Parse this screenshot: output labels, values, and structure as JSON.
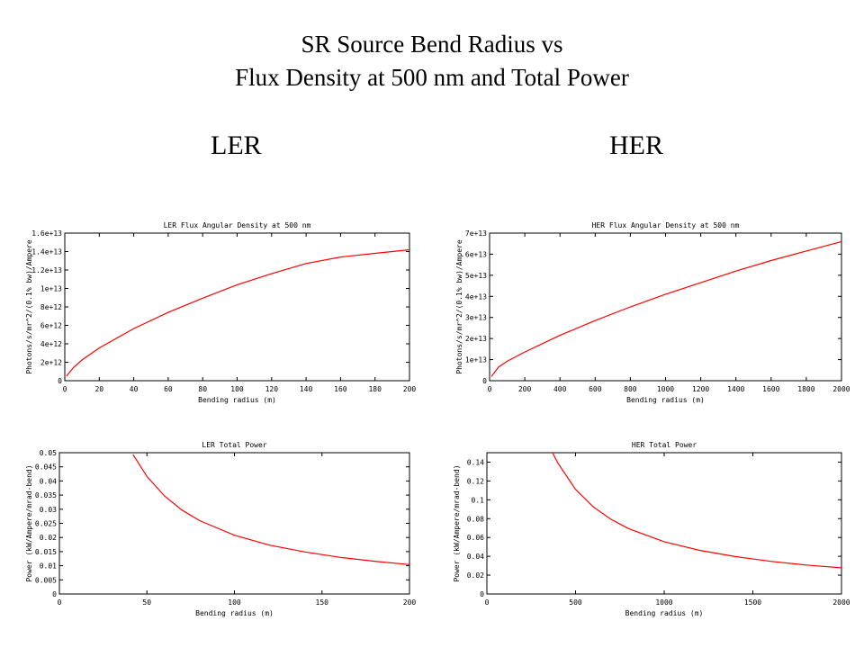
{
  "slide": {
    "title_line1": "SR Source Bend Radius vs",
    "title_line2": "Flux Density at 500 nm and Total Power",
    "label_left": "LER",
    "label_right": "HER"
  },
  "colors": {
    "curve": "#ff0000",
    "axis": "#000000"
  },
  "chart_data": [
    {
      "id": "ler-flux",
      "type": "line",
      "title": "LER Flux Angular Density at 500 nm",
      "xlabel": "Bending radius (m)",
      "ylabel": "Photons/s/mr^2/(0.1% bw)/Ampere",
      "xlim": [
        0,
        200
      ],
      "ylim": [
        0,
        16000000000000.0
      ],
      "xticks": [
        0,
        20,
        40,
        60,
        80,
        100,
        120,
        140,
        160,
        180,
        200
      ],
      "xtick_labels": [
        "0",
        "20",
        "40",
        "60",
        "80",
        "100",
        "120",
        "140",
        "160",
        "180",
        "200"
      ],
      "yticks": [
        0,
        2000000000000.0,
        4000000000000.0,
        6000000000000.0,
        8000000000000.0,
        10000000000000.0,
        12000000000000.0,
        14000000000000.0,
        16000000000000.0
      ],
      "ytick_labels": [
        "0",
        "2e+12",
        "4e+12",
        "6e+12",
        "8e+12",
        "1e+13",
        "1.2e+13",
        "1.4e+13",
        "1.6e+13"
      ],
      "series": [
        {
          "x": [
            1,
            5,
            10,
            20,
            40,
            60,
            80,
            100,
            120,
            140,
            160,
            180,
            200
          ],
          "y": [
            500000000000.0,
            1420000000000.0,
            2250000000000.0,
            3550000000000.0,
            5650000000000.0,
            7400000000000.0,
            8950000000000.0,
            10400000000000.0,
            11600000000000.0,
            12700000000000.0,
            13400000000000.0,
            13800000000000.0,
            14200000000000.0
          ]
        }
      ]
    },
    {
      "id": "her-flux",
      "type": "line",
      "title": "HER Flux Angular Density at 500 nm",
      "xlabel": "Bending radius (m)",
      "ylabel": "Photons/s/mr^2/(0.1% bw)/Ampere",
      "xlim": [
        0,
        2000
      ],
      "ylim": [
        0,
        70000000000000.0
      ],
      "xticks": [
        0,
        200,
        400,
        600,
        800,
        1000,
        1200,
        1400,
        1600,
        1800,
        2000
      ],
      "xtick_labels": [
        "0",
        "200",
        "400",
        "600",
        "800",
        "1000",
        "1200",
        "1400",
        "1600",
        "1800",
        "2000"
      ],
      "yticks": [
        0,
        10000000000000.0,
        20000000000000.0,
        30000000000000.0,
        40000000000000.0,
        50000000000000.0,
        60000000000000.0,
        70000000000000.0
      ],
      "ytick_labels": [
        "0",
        "1e+13",
        "2e+13",
        "3e+13",
        "4e+13",
        "5e+13",
        "6e+13",
        "7e+13"
      ],
      "series": [
        {
          "x": [
            10,
            50,
            100,
            200,
            400,
            600,
            800,
            1000,
            1200,
            1400,
            1600,
            1800,
            2000
          ],
          "y": [
            2000000000000.0,
            6400000000000.0,
            9200000000000.0,
            13600000000000.0,
            21500000000000.0,
            28500000000000.0,
            35000000000000.0,
            41000000000000.0,
            46500000000000.0,
            52000000000000.0,
            57000000000000.0,
            61500000000000.0,
            66000000000000.0
          ]
        }
      ]
    },
    {
      "id": "ler-power",
      "type": "line",
      "title": "LER Total Power",
      "xlabel": "Bending radius (m)",
      "ylabel": "Power (kW/Ampere/mrad-bend)",
      "xlim": [
        0,
        200
      ],
      "ylim": [
        0,
        0.05
      ],
      "xticks": [
        0,
        50,
        100,
        150,
        200
      ],
      "xtick_labels": [
        "0",
        "50",
        "100",
        "150",
        "200"
      ],
      "yticks": [
        0,
        0.005,
        0.01,
        0.015,
        0.02,
        0.025,
        0.03,
        0.035,
        0.04,
        0.045,
        0.05
      ],
      "ytick_labels": [
        "0",
        "0.005",
        "0.01",
        "0.015",
        "0.02",
        "0.025",
        "0.03",
        "0.035",
        "0.04",
        "0.045",
        "0.05"
      ],
      "series": [
        {
          "x": [
            42,
            50,
            60,
            70,
            80,
            100,
            120,
            140,
            160,
            180,
            200
          ],
          "y": [
            0.0494,
            0.0416,
            0.0347,
            0.0297,
            0.026,
            0.0208,
            0.0173,
            0.0149,
            0.013,
            0.0116,
            0.0104
          ]
        }
      ]
    },
    {
      "id": "her-power",
      "type": "line",
      "title": "HER Total Power",
      "xlabel": "Bending radius (m)",
      "ylabel": "Power (kW/Ampere/mrad-bend)",
      "xlim": [
        0,
        2000
      ],
      "ylim": [
        0,
        0.15
      ],
      "xticks": [
        0,
        500,
        1000,
        1500,
        2000
      ],
      "xtick_labels": [
        "0",
        "500",
        "1000",
        "1500",
        "2000"
      ],
      "yticks": [
        0,
        0.02,
        0.04,
        0.06,
        0.08,
        0.1,
        0.12,
        0.14
      ],
      "ytick_labels": [
        "0",
        "0.02",
        "0.04",
        "0.06",
        "0.08",
        "0.1",
        "0.12",
        "0.14"
      ],
      "series": [
        {
          "x": [
            370,
            400,
            500,
            600,
            700,
            800,
            1000,
            1200,
            1400,
            1600,
            1800,
            2000
          ],
          "y": [
            0.15,
            0.139,
            0.111,
            0.0925,
            0.0793,
            0.0694,
            0.0555,
            0.0463,
            0.0397,
            0.0347,
            0.0308,
            0.0278
          ]
        }
      ]
    }
  ]
}
